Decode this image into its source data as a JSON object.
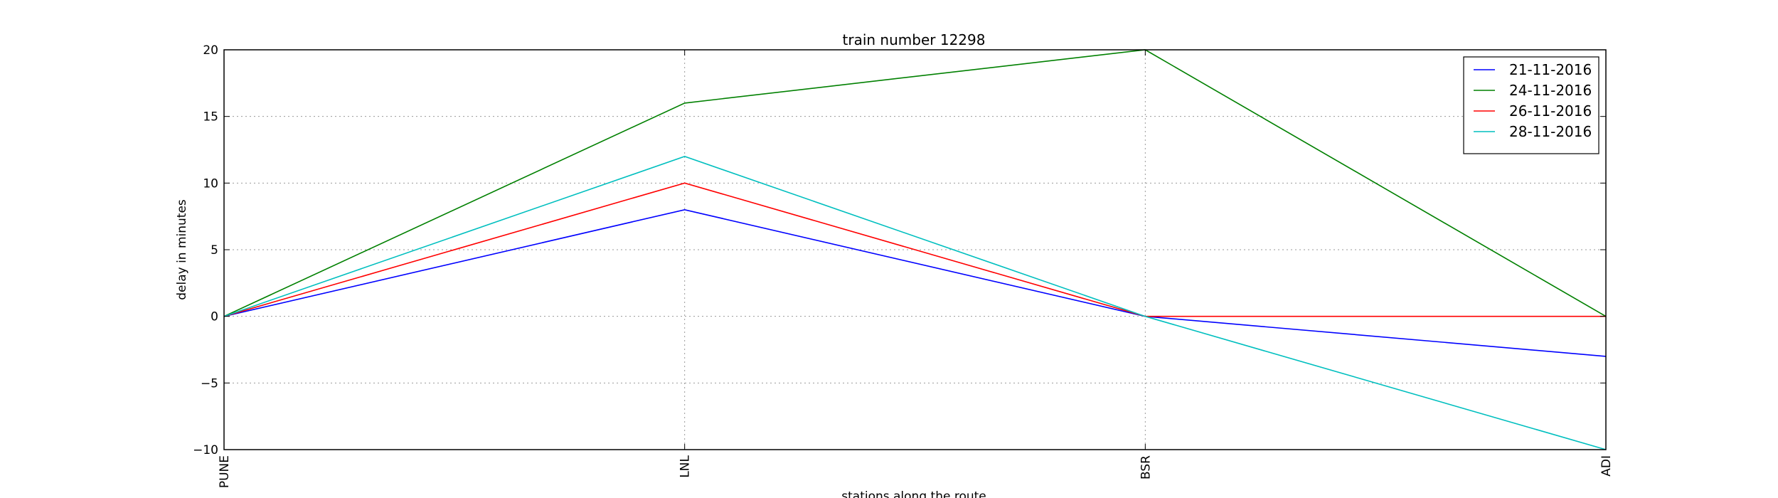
{
  "chart_data": {
    "type": "line",
    "title": "train number 12298",
    "xlabel": "stations along the route",
    "ylabel": "delay in minutes",
    "categories": [
      "PUNE",
      "LNL",
      "BSR",
      "ADI"
    ],
    "ylim": [
      -10,
      20
    ],
    "yticks": [
      20,
      15,
      10,
      5,
      0,
      -5,
      -10
    ],
    "ytick_labels": [
      "20",
      "15",
      "10",
      "5",
      "0",
      "−5",
      "−10"
    ],
    "grid": true,
    "legend_position": "top-right",
    "series": [
      {
        "name": "21-11-2016",
        "color": "#0000ff",
        "values": [
          0,
          8,
          0,
          -3
        ]
      },
      {
        "name": "24-11-2016",
        "color": "#008000",
        "values": [
          0,
          16,
          20,
          0
        ]
      },
      {
        "name": "26-11-2016",
        "color": "#ff0000",
        "values": [
          0,
          10,
          0,
          0
        ]
      },
      {
        "name": "28-11-2016",
        "color": "#00bfbf",
        "values": [
          0,
          12,
          0,
          -10
        ]
      }
    ]
  }
}
